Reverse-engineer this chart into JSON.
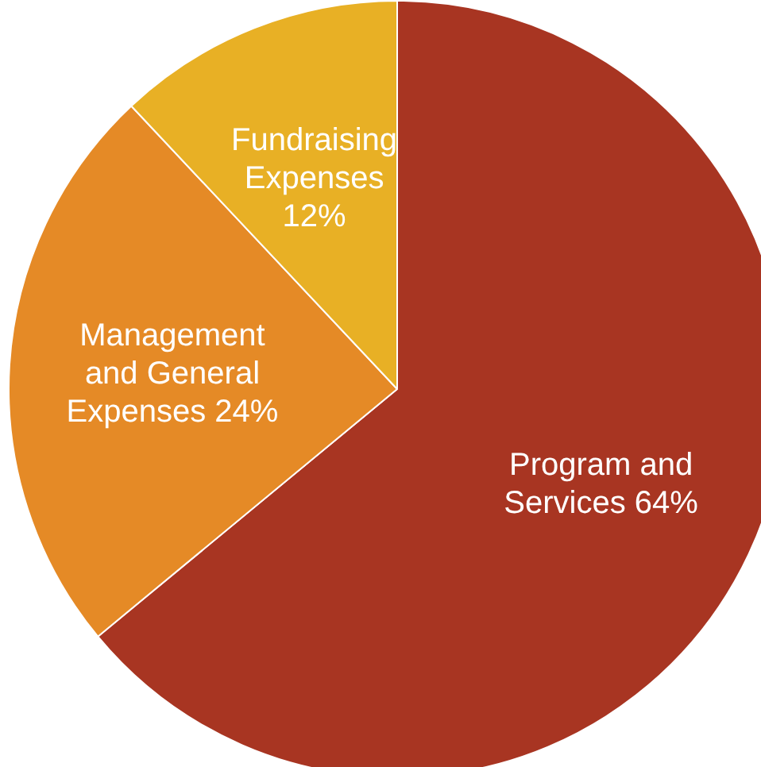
{
  "chart_data": {
    "type": "pie",
    "categories": [
      "Program and Services",
      "Management and General Expenses",
      "Fundraising Expenses"
    ],
    "values": [
      64,
      24,
      12
    ],
    "colors": [
      "#a83522",
      "#e58a26",
      "#e8b025"
    ],
    "value_labels": [
      "64%",
      "24%",
      "12%"
    ],
    "legend": false
  }
}
